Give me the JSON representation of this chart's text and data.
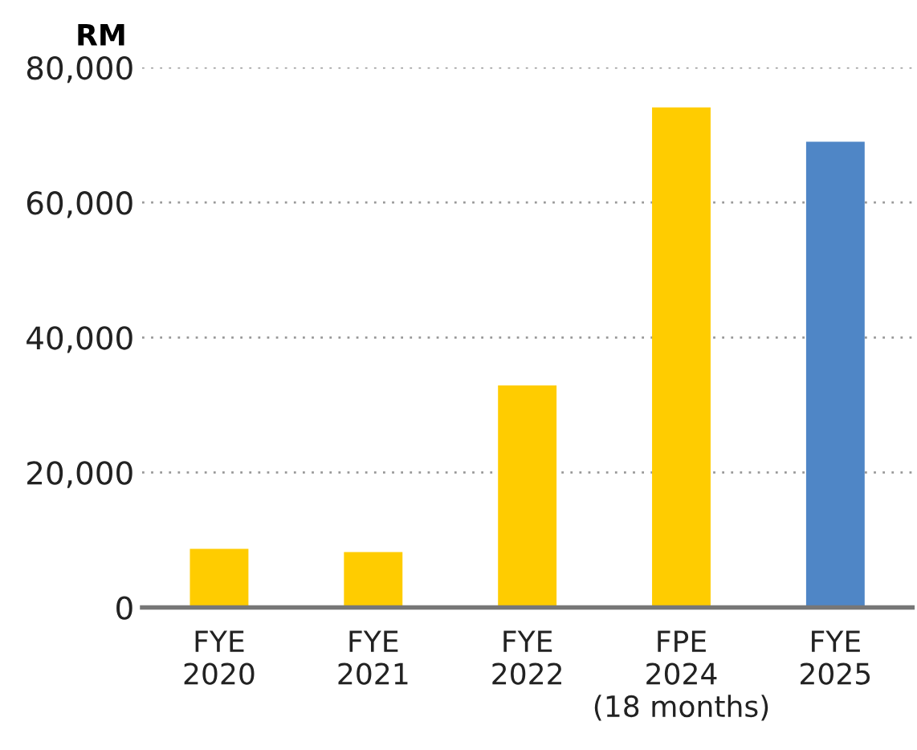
{
  "chart_data": {
    "type": "bar",
    "ylabel": "RM",
    "categories": [
      "FYE\n2020",
      "FYE\n2021",
      "FYE\n2022",
      "FPE\n2024\n(18 months)",
      "FYE\n2025"
    ],
    "values": [
      8700,
      8200,
      32900,
      74100,
      69000
    ],
    "colors": [
      "#ffcc00",
      "#ffcc00",
      "#ffcc00",
      "#ffcc00",
      "#4f86c6"
    ],
    "ylim": [
      0,
      80000
    ],
    "yticks": [
      {
        "value": 0,
        "label": "0"
      },
      {
        "value": 20000,
        "label": "20,000"
      },
      {
        "value": 40000,
        "label": "40,000"
      },
      {
        "value": 60000,
        "label": "60,000"
      },
      {
        "value": 80000,
        "label": "80,000"
      }
    ],
    "grid": "y"
  }
}
